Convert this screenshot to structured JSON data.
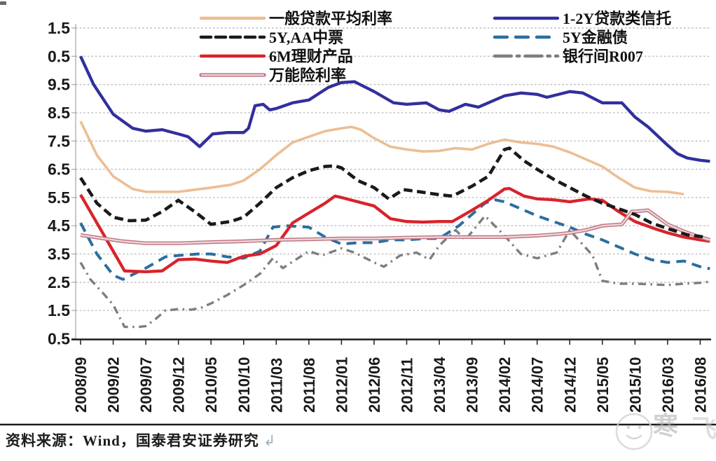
{
  "source_note": {
    "text": "资料来源：Wind，国泰君安证券研究",
    "return_icon": "↲"
  },
  "watermark": {
    "char_1": "寒",
    "char_2": "飞"
  },
  "chart_data": {
    "type": "line",
    "title": "",
    "x_unit": "tick_index",
    "x_tick_labels": [
      "2008/09",
      "2009/02",
      "2009/07",
      "2009/12",
      "2010/05",
      "2010/10",
      "2011/03",
      "2011/08",
      "2012/01",
      "2012/06",
      "2012/11",
      "2013/04",
      "2013/09",
      "2014/02",
      "2014/07",
      "2014/12",
      "2015/05",
      "2015/10",
      "2016/03",
      "2016/08"
    ],
    "y_axis": {
      "min": 0.5,
      "max": 11.5,
      "step": 1.0,
      "tick_labels_top_to_bottom": [
        "1.5",
        "0.5",
        "9.5",
        "8.5",
        "7.5",
        "6.5",
        "5.5",
        "4.5",
        "3.5",
        "2.5",
        "1.5",
        "0.5"
      ]
    },
    "grid": "dotted-horizontal",
    "legend_position": "top",
    "legend": {
      "left_column": [
        "一般贷款平均利率",
        "5Y,AA中票",
        "6M理财产品",
        "万能险利率"
      ],
      "right_column": [
        "1-2Y贷款类信托",
        "5Y金融债",
        "银行间R007"
      ]
    },
    "series": [
      {
        "name": "一般贷款平均利率",
        "color": "#ECBE93",
        "style": "solid",
        "width": 3.6,
        "dash": "",
        "legend_dash": "",
        "points": [
          [
            0,
            8.2
          ],
          [
            0.5,
            7.0
          ],
          [
            1,
            6.25
          ],
          [
            1.6,
            5.8
          ],
          [
            2,
            5.7
          ],
          [
            3,
            5.7
          ],
          [
            4,
            5.85
          ],
          [
            4.6,
            5.95
          ],
          [
            5,
            6.1
          ],
          [
            5.5,
            6.5
          ],
          [
            6,
            7.0
          ],
          [
            6.5,
            7.45
          ],
          [
            7,
            7.65
          ],
          [
            7.5,
            7.85
          ],
          [
            8,
            7.95
          ],
          [
            8.3,
            8.0
          ],
          [
            8.6,
            7.9
          ],
          [
            9,
            7.6
          ],
          [
            9.5,
            7.3
          ],
          [
            10,
            7.2
          ],
          [
            10.5,
            7.13
          ],
          [
            11,
            7.15
          ],
          [
            11.5,
            7.25
          ],
          [
            12,
            7.2
          ],
          [
            12.5,
            7.4
          ],
          [
            13,
            7.55
          ],
          [
            13.5,
            7.45
          ],
          [
            14,
            7.4
          ],
          [
            14.5,
            7.3
          ],
          [
            15,
            7.1
          ],
          [
            15.5,
            6.85
          ],
          [
            16,
            6.6
          ],
          [
            16.5,
            6.2
          ],
          [
            17,
            5.85
          ],
          [
            17.5,
            5.72
          ],
          [
            18,
            5.7
          ],
          [
            18.5,
            5.62
          ]
        ]
      },
      {
        "name": "1-2Y贷款类信托",
        "color": "#322F9D",
        "style": "solid",
        "width": 4.3,
        "dash": "",
        "legend_dash": "",
        "points": [
          [
            0,
            10.5
          ],
          [
            0.4,
            9.5
          ],
          [
            1,
            8.45
          ],
          [
            1.6,
            7.95
          ],
          [
            2,
            7.85
          ],
          [
            2.5,
            7.9
          ],
          [
            3,
            7.75
          ],
          [
            3.3,
            7.65
          ],
          [
            3.65,
            7.3
          ],
          [
            4.05,
            7.75
          ],
          [
            4.5,
            7.8
          ],
          [
            5,
            7.8
          ],
          [
            5.15,
            7.95
          ],
          [
            5.35,
            8.75
          ],
          [
            5.6,
            8.8
          ],
          [
            5.8,
            8.6
          ],
          [
            6,
            8.65
          ],
          [
            6.5,
            8.85
          ],
          [
            7,
            8.95
          ],
          [
            7.6,
            9.4
          ],
          [
            8,
            9.57
          ],
          [
            8.4,
            9.6
          ],
          [
            9,
            9.25
          ],
          [
            9.6,
            8.85
          ],
          [
            10,
            8.8
          ],
          [
            10.6,
            8.85
          ],
          [
            11,
            8.6
          ],
          [
            11.3,
            8.55
          ],
          [
            11.8,
            8.8
          ],
          [
            12.2,
            8.7
          ],
          [
            12.6,
            8.9
          ],
          [
            13,
            9.1
          ],
          [
            13.5,
            9.2
          ],
          [
            14,
            9.15
          ],
          [
            14.3,
            9.05
          ],
          [
            15,
            9.25
          ],
          [
            15.4,
            9.2
          ],
          [
            16,
            8.85
          ],
          [
            16.6,
            8.85
          ],
          [
            17,
            8.35
          ],
          [
            17.4,
            8.0
          ],
          [
            18,
            7.35
          ],
          [
            18.3,
            7.05
          ],
          [
            18.6,
            6.9
          ],
          [
            19,
            6.82
          ],
          [
            19.3,
            6.78
          ]
        ]
      },
      {
        "name": "银行间R007",
        "color": "#7E7E7E",
        "style": "dashdot",
        "width": 3.4,
        "dash": "11 6.5 2.5 6.5",
        "legend_dash": "24 8 3.5 8",
        "points": [
          [
            0,
            3.2
          ],
          [
            0.3,
            2.6
          ],
          [
            0.7,
            2.1
          ],
          [
            1,
            1.7
          ],
          [
            1.35,
            0.92
          ],
          [
            1.8,
            0.92
          ],
          [
            2,
            0.95
          ],
          [
            2.3,
            1.2
          ],
          [
            2.6,
            1.5
          ],
          [
            3,
            1.55
          ],
          [
            3.4,
            1.53
          ],
          [
            3.7,
            1.6
          ],
          [
            4,
            1.75
          ],
          [
            4.5,
            2.05
          ],
          [
            5,
            2.4
          ],
          [
            5.5,
            2.8
          ],
          [
            5.9,
            3.35
          ],
          [
            6.2,
            3.0
          ],
          [
            6.6,
            3.3
          ],
          [
            7,
            3.6
          ],
          [
            7.4,
            3.45
          ],
          [
            8,
            3.7
          ],
          [
            8.4,
            3.55
          ],
          [
            9,
            3.2
          ],
          [
            9.3,
            3.05
          ],
          [
            9.8,
            3.45
          ],
          [
            10.3,
            3.55
          ],
          [
            10.7,
            3.3
          ],
          [
            11,
            3.8
          ],
          [
            11.5,
            4.35
          ],
          [
            11.8,
            4.0
          ],
          [
            12.4,
            4.85
          ],
          [
            13,
            4.15
          ],
          [
            13.5,
            3.5
          ],
          [
            14,
            3.35
          ],
          [
            14.6,
            3.55
          ],
          [
            15,
            4.35
          ],
          [
            15.7,
            3.45
          ],
          [
            16,
            2.55
          ],
          [
            16.5,
            2.45
          ],
          [
            17,
            2.45
          ],
          [
            18,
            2.4
          ],
          [
            18.5,
            2.45
          ],
          [
            19,
            2.48
          ],
          [
            19.3,
            2.52
          ]
        ]
      },
      {
        "name": "5Y金融债",
        "color": "#2B6E9F",
        "style": "dashed",
        "width": 4.0,
        "dash": "14 9",
        "legend_dash": "18 12",
        "points": [
          [
            0,
            4.6
          ],
          [
            0.5,
            3.5
          ],
          [
            1,
            2.75
          ],
          [
            1.3,
            2.6
          ],
          [
            2,
            3.0
          ],
          [
            2.6,
            3.4
          ],
          [
            3,
            3.45
          ],
          [
            3.6,
            3.5
          ],
          [
            4,
            3.5
          ],
          [
            4.5,
            3.4
          ],
          [
            5,
            3.35
          ],
          [
            5.5,
            3.6
          ],
          [
            5.9,
            4.45
          ],
          [
            6.3,
            4.5
          ],
          [
            7,
            4.45
          ],
          [
            7.5,
            4.1
          ],
          [
            8,
            3.85
          ],
          [
            8.5,
            3.9
          ],
          [
            9,
            3.9
          ],
          [
            9.5,
            4.0
          ],
          [
            10,
            4.0
          ],
          [
            10.6,
            4.05
          ],
          [
            11,
            4.05
          ],
          [
            11.6,
            4.5
          ],
          [
            12,
            4.9
          ],
          [
            12.4,
            5.3
          ],
          [
            12.7,
            5.42
          ],
          [
            13,
            5.35
          ],
          [
            13.5,
            5.1
          ],
          [
            14,
            4.85
          ],
          [
            14.5,
            4.65
          ],
          [
            15,
            4.45
          ],
          [
            15.5,
            4.2
          ],
          [
            16,
            4.0
          ],
          [
            16.5,
            3.75
          ],
          [
            17,
            3.5
          ],
          [
            17.5,
            3.3
          ],
          [
            18,
            3.2
          ],
          [
            18.5,
            3.25
          ],
          [
            19,
            3.05
          ],
          [
            19.3,
            2.98
          ]
        ]
      },
      {
        "name": "6M理财产品",
        "color": "#D8232A",
        "style": "solid",
        "width": 4.3,
        "dash": "",
        "legend_dash": "",
        "points": [
          [
            0,
            5.6
          ],
          [
            0.5,
            4.6
          ],
          [
            1,
            3.6
          ],
          [
            1.35,
            2.9
          ],
          [
            2,
            2.87
          ],
          [
            2.5,
            2.9
          ],
          [
            3,
            3.3
          ],
          [
            3.5,
            3.32
          ],
          [
            4,
            3.25
          ],
          [
            4.5,
            3.2
          ],
          [
            5,
            3.42
          ],
          [
            5.5,
            3.5
          ],
          [
            6,
            3.8
          ],
          [
            6.5,
            4.6
          ],
          [
            7,
            4.95
          ],
          [
            7.5,
            5.3
          ],
          [
            7.8,
            5.55
          ],
          [
            8,
            5.5
          ],
          [
            8.5,
            5.35
          ],
          [
            9,
            5.2
          ],
          [
            9.5,
            4.75
          ],
          [
            10,
            4.65
          ],
          [
            10.5,
            4.63
          ],
          [
            11,
            4.65
          ],
          [
            11.4,
            4.65
          ],
          [
            12,
            5.05
          ],
          [
            12.5,
            5.4
          ],
          [
            13,
            5.8
          ],
          [
            13.15,
            5.82
          ],
          [
            13.6,
            5.55
          ],
          [
            14,
            5.45
          ],
          [
            14.5,
            5.42
          ],
          [
            15,
            5.35
          ],
          [
            15.6,
            5.45
          ],
          [
            16,
            5.4
          ],
          [
            16.5,
            5.0
          ],
          [
            17,
            4.65
          ],
          [
            17.6,
            4.4
          ],
          [
            18,
            4.25
          ],
          [
            18.5,
            4.1
          ],
          [
            19,
            4.0
          ],
          [
            19.3,
            3.95
          ]
        ]
      },
      {
        "name": "万能险利率",
        "color": "#BE7280",
        "style": "double",
        "inner_color": "#EDD7DA",
        "width": 5.2,
        "dash": "",
        "legend_dash": "",
        "points": [
          [
            0,
            4.17
          ],
          [
            0.7,
            4.05
          ],
          [
            1.3,
            3.95
          ],
          [
            2,
            3.88
          ],
          [
            3,
            3.88
          ],
          [
            4,
            3.92
          ],
          [
            5,
            3.95
          ],
          [
            6,
            4.0
          ],
          [
            7,
            4.02
          ],
          [
            8,
            4.05
          ],
          [
            9,
            4.05
          ],
          [
            10,
            4.08
          ],
          [
            11,
            4.1
          ],
          [
            12,
            4.1
          ],
          [
            13,
            4.1
          ],
          [
            14,
            4.15
          ],
          [
            14.6,
            4.2
          ],
          [
            15,
            4.25
          ],
          [
            15.5,
            4.35
          ],
          [
            16,
            4.5
          ],
          [
            16.6,
            4.55
          ],
          [
            16.9,
            5.0
          ],
          [
            17.4,
            5.05
          ],
          [
            18,
            4.55
          ],
          [
            18.5,
            4.3
          ],
          [
            19,
            4.1
          ],
          [
            19.3,
            4.0
          ]
        ]
      },
      {
        "name": "5Y,AA中票",
        "color": "#1A1A1A",
        "style": "dashed",
        "width": 4.6,
        "dash": "12.5 6.5",
        "legend_dash": "14 7",
        "points": [
          [
            0,
            6.2
          ],
          [
            0.5,
            5.3
          ],
          [
            1,
            4.8
          ],
          [
            1.5,
            4.68
          ],
          [
            2,
            4.7
          ],
          [
            2.5,
            5.0
          ],
          [
            3,
            5.4
          ],
          [
            3.5,
            5.0
          ],
          [
            4,
            4.55
          ],
          [
            4.6,
            4.65
          ],
          [
            5,
            4.8
          ],
          [
            5.5,
            5.3
          ],
          [
            6,
            5.85
          ],
          [
            6.5,
            6.2
          ],
          [
            7,
            6.45
          ],
          [
            7.5,
            6.6
          ],
          [
            7.8,
            6.62
          ],
          [
            8,
            6.55
          ],
          [
            8.5,
            6.1
          ],
          [
            9,
            5.85
          ],
          [
            9.45,
            5.45
          ],
          [
            9.9,
            5.78
          ],
          [
            10.4,
            5.7
          ],
          [
            11,
            5.6
          ],
          [
            11.4,
            5.55
          ],
          [
            12,
            5.9
          ],
          [
            12.5,
            6.25
          ],
          [
            13,
            7.2
          ],
          [
            13.15,
            7.25
          ],
          [
            13.6,
            6.8
          ],
          [
            14,
            6.5
          ],
          [
            14.5,
            6.15
          ],
          [
            15,
            5.85
          ],
          [
            15.5,
            5.55
          ],
          [
            16,
            5.3
          ],
          [
            16.5,
            5.1
          ],
          [
            17,
            4.9
          ],
          [
            17.5,
            4.6
          ],
          [
            18,
            4.4
          ],
          [
            18.6,
            4.18
          ],
          [
            19,
            4.12
          ],
          [
            19.15,
            4.1
          ]
        ]
      }
    ]
  }
}
